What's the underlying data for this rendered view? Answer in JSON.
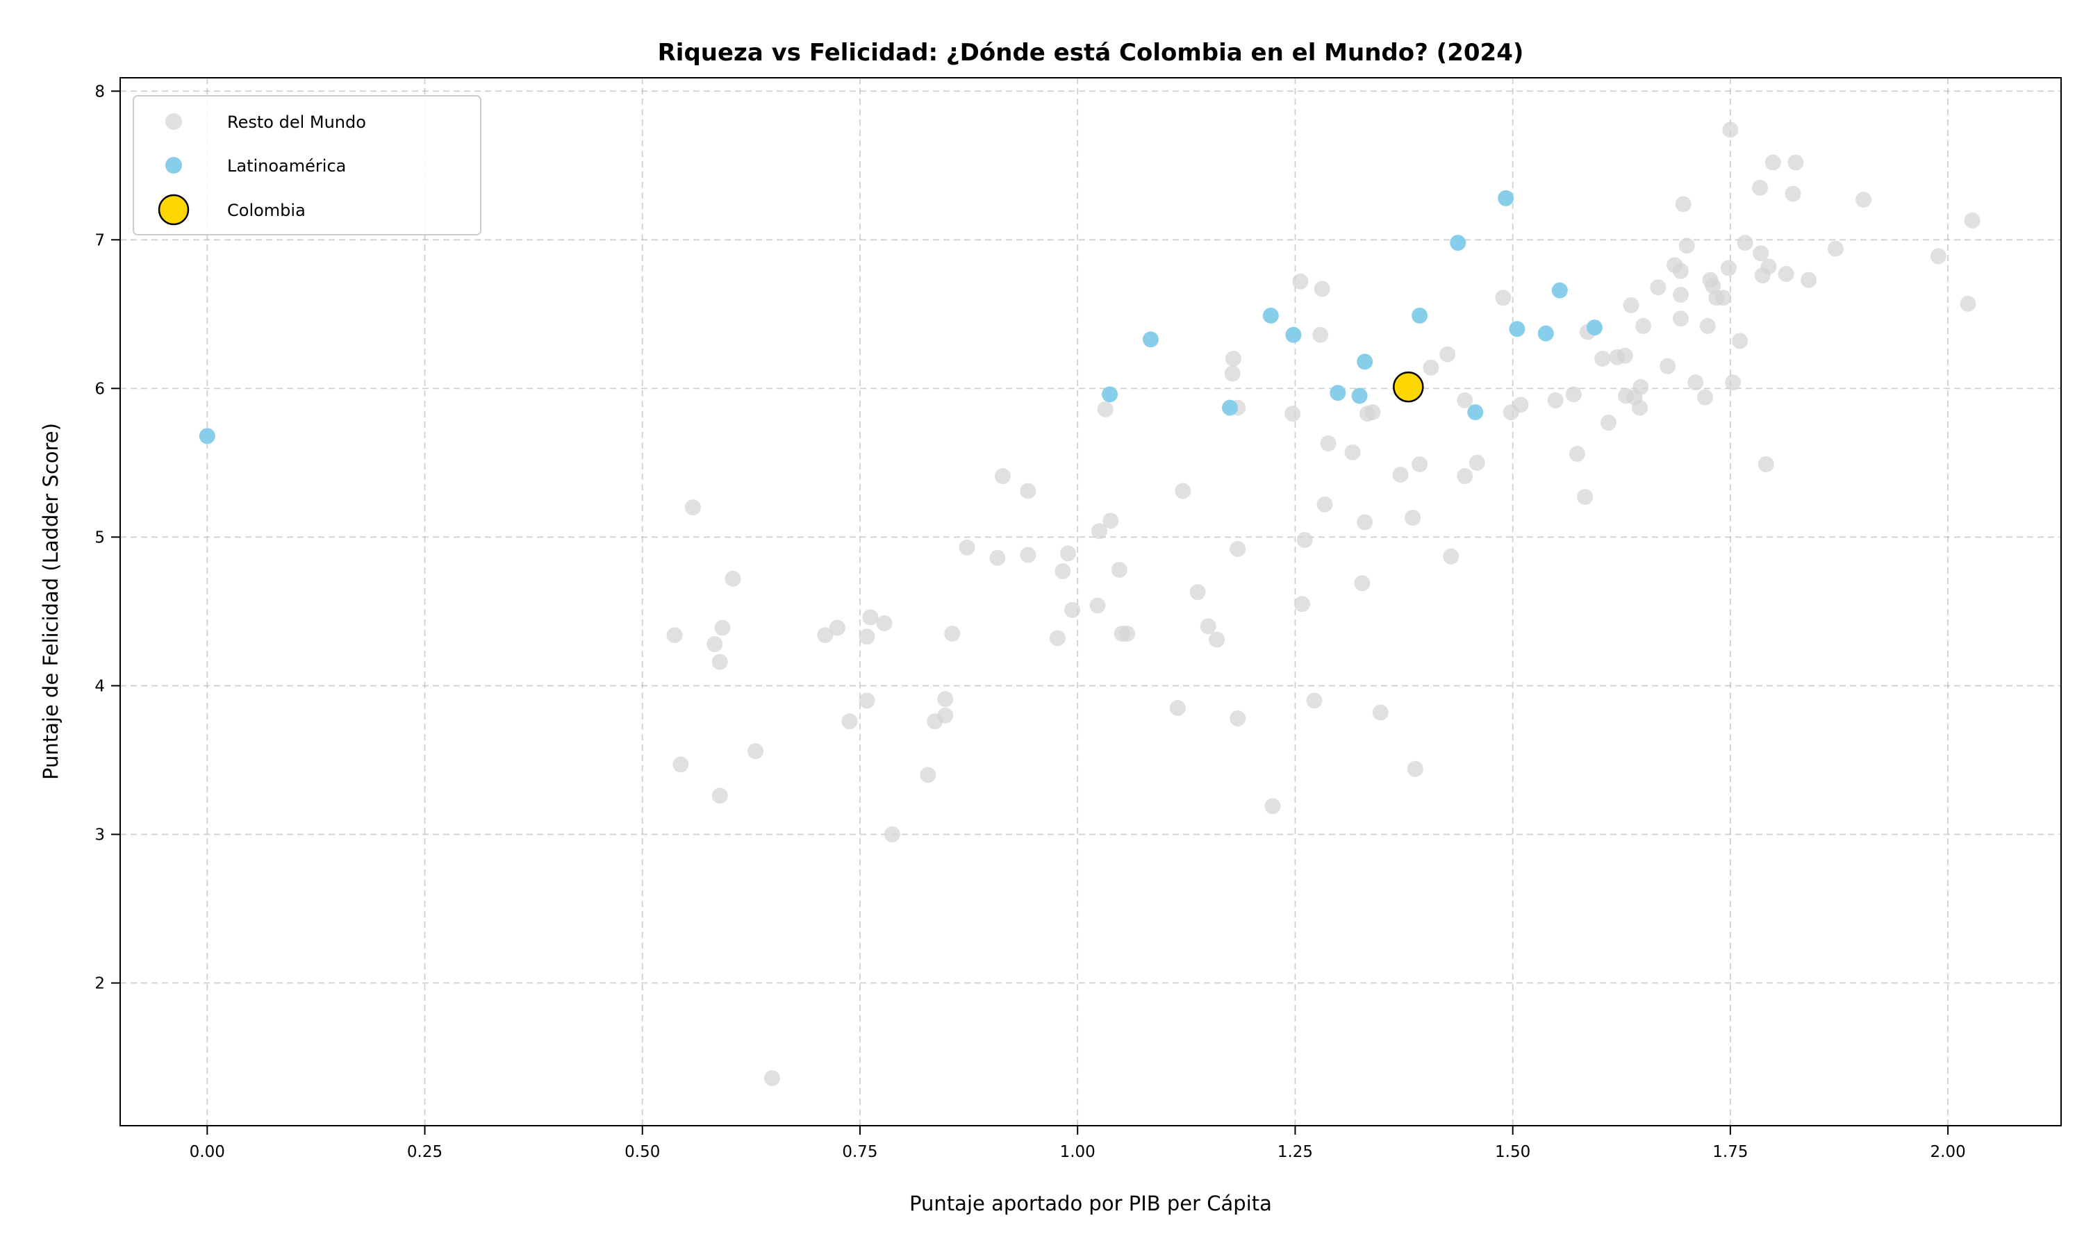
{
  "chart_data": {
    "type": "scatter",
    "title": "Riqueza vs Felicidad: ¿Dónde está Colombia en el Mundo? (2024)",
    "xlabel": "Puntaje aportado por PIB per Cápita",
    "ylabel": "Puntaje de Felicidad (Ladder Score)",
    "xlim": [
      -0.1,
      2.13
    ],
    "ylim": [
      1.04,
      8.09
    ],
    "xticks": [
      0,
      0.25,
      0.5,
      0.75,
      1.0,
      1.25,
      1.5,
      1.75,
      2.0
    ],
    "xtick_labels": [
      "0.00",
      "0.25",
      "0.50",
      "0.75",
      "1.00",
      "1.25",
      "1.50",
      "1.75",
      "2.00"
    ],
    "yticks": [
      2,
      3,
      4,
      5,
      6,
      7,
      8
    ],
    "ytick_labels": [
      "2",
      "3",
      "4",
      "5",
      "6",
      "7",
      "8"
    ],
    "grid": true,
    "legend_placement": "upper-left",
    "series": [
      {
        "name": "Resto del Mundo",
        "color": "#d3d3d3",
        "points": [
          [
            0.649,
            1.36
          ],
          [
            0.787,
            3.0
          ],
          [
            0.589,
            3.26
          ],
          [
            0.544,
            3.47
          ],
          [
            0.63,
            3.56
          ],
          [
            0.828,
            3.4
          ],
          [
            0.537,
            4.34
          ],
          [
            0.558,
            5.2
          ],
          [
            0.604,
            4.72
          ],
          [
            0.583,
            4.28
          ],
          [
            0.592,
            4.39
          ],
          [
            0.589,
            4.16
          ],
          [
            0.71,
            4.34
          ],
          [
            0.724,
            4.39
          ],
          [
            0.758,
            4.33
          ],
          [
            0.762,
            4.46
          ],
          [
            0.778,
            4.42
          ],
          [
            0.758,
            3.9
          ],
          [
            0.738,
            3.76
          ],
          [
            0.836,
            3.76
          ],
          [
            0.848,
            3.8
          ],
          [
            0.848,
            3.91
          ],
          [
            0.856,
            4.35
          ],
          [
            0.873,
            4.93
          ],
          [
            0.908,
            4.86
          ],
          [
            0.914,
            5.41
          ],
          [
            0.943,
            5.31
          ],
          [
            0.943,
            4.88
          ],
          [
            0.977,
            4.32
          ],
          [
            0.983,
            4.77
          ],
          [
            0.989,
            4.89
          ],
          [
            0.994,
            4.51
          ],
          [
            1.023,
            4.54
          ],
          [
            1.025,
            5.04
          ],
          [
            1.038,
            5.11
          ],
          [
            1.032,
            5.86
          ],
          [
            1.048,
            4.78
          ],
          [
            1.051,
            4.35
          ],
          [
            1.057,
            4.35
          ],
          [
            1.115,
            3.85
          ],
          [
            1.121,
            5.31
          ],
          [
            1.138,
            4.63
          ],
          [
            1.15,
            4.4
          ],
          [
            1.16,
            4.31
          ],
          [
            1.179,
            6.2
          ],
          [
            1.178,
            6.1
          ],
          [
            1.184,
            5.87
          ],
          [
            1.184,
            4.92
          ],
          [
            1.184,
            3.78
          ],
          [
            1.224,
            3.19
          ],
          [
            1.247,
            5.83
          ],
          [
            1.256,
            6.72
          ],
          [
            1.258,
            4.55
          ],
          [
            1.261,
            4.98
          ],
          [
            1.272,
            3.9
          ],
          [
            1.279,
            6.36
          ],
          [
            1.281,
            6.67
          ],
          [
            1.284,
            5.22
          ],
          [
            1.288,
            5.63
          ],
          [
            1.316,
            5.57
          ],
          [
            1.327,
            4.69
          ],
          [
            1.33,
            5.1
          ],
          [
            1.333,
            5.83
          ],
          [
            1.339,
            5.84
          ],
          [
            1.348,
            3.82
          ],
          [
            1.371,
            5.42
          ],
          [
            1.385,
            5.13
          ],
          [
            1.388,
            3.44
          ],
          [
            1.393,
            5.49
          ],
          [
            1.406,
            6.14
          ],
          [
            1.425,
            6.23
          ],
          [
            1.429,
            4.87
          ],
          [
            1.445,
            5.41
          ],
          [
            1.445,
            5.92
          ],
          [
            1.459,
            5.5
          ],
          [
            1.489,
            6.61
          ],
          [
            1.498,
            5.84
          ],
          [
            1.509,
            5.89
          ],
          [
            1.549,
            5.92
          ],
          [
            1.57,
            5.96
          ],
          [
            1.574,
            5.56
          ],
          [
            1.583,
            5.27
          ],
          [
            1.586,
            6.38
          ],
          [
            1.603,
            6.2
          ],
          [
            1.61,
            5.77
          ],
          [
            1.62,
            6.21
          ],
          [
            1.629,
            6.22
          ],
          [
            1.63,
            5.95
          ],
          [
            1.636,
            6.56
          ],
          [
            1.64,
            5.94
          ],
          [
            1.646,
            5.87
          ],
          [
            1.647,
            6.01
          ],
          [
            1.65,
            6.42
          ],
          [
            1.667,
            6.68
          ],
          [
            1.678,
            6.15
          ],
          [
            1.686,
            6.83
          ],
          [
            1.693,
            6.47
          ],
          [
            1.693,
            6.63
          ],
          [
            1.693,
            6.79
          ],
          [
            1.696,
            7.24
          ],
          [
            1.7,
            6.96
          ],
          [
            1.71,
            6.04
          ],
          [
            1.721,
            5.94
          ],
          [
            1.724,
            6.42
          ],
          [
            1.727,
            6.73
          ],
          [
            1.73,
            6.69
          ],
          [
            1.734,
            6.61
          ],
          [
            1.742,
            6.61
          ],
          [
            1.748,
            6.81
          ],
          [
            1.75,
            7.74
          ],
          [
            1.753,
            6.04
          ],
          [
            1.761,
            6.32
          ],
          [
            1.767,
            6.98
          ],
          [
            1.784,
            7.35
          ],
          [
            1.785,
            6.91
          ],
          [
            1.787,
            6.76
          ],
          [
            1.791,
            5.49
          ],
          [
            1.794,
            6.82
          ],
          [
            1.799,
            7.52
          ],
          [
            1.814,
            6.77
          ],
          [
            1.822,
            7.31
          ],
          [
            1.825,
            7.52
          ],
          [
            1.84,
            6.73
          ],
          [
            1.871,
            6.94
          ],
          [
            1.903,
            7.27
          ],
          [
            1.989,
            6.89
          ],
          [
            2.023,
            6.57
          ],
          [
            2.028,
            7.13
          ]
        ]
      },
      {
        "name": "Latinoamérica",
        "color": "#87ceeb",
        "points": [
          [
            0.0,
            5.68
          ],
          [
            1.037,
            5.96
          ],
          [
            1.084,
            6.33
          ],
          [
            1.175,
            5.87
          ],
          [
            1.222,
            6.49
          ],
          [
            1.248,
            6.36
          ],
          [
            1.299,
            5.97
          ],
          [
            1.324,
            5.95
          ],
          [
            1.33,
            6.18
          ],
          [
            1.393,
            6.49
          ],
          [
            1.437,
            6.98
          ],
          [
            1.457,
            5.84
          ],
          [
            1.492,
            7.28
          ],
          [
            1.505,
            6.4
          ],
          [
            1.538,
            6.37
          ],
          [
            1.554,
            6.66
          ],
          [
            1.594,
            6.41
          ]
        ]
      },
      {
        "name": "Colombia",
        "color": "#ffd700",
        "points": [
          [
            1.38,
            6.01
          ]
        ]
      }
    ]
  }
}
